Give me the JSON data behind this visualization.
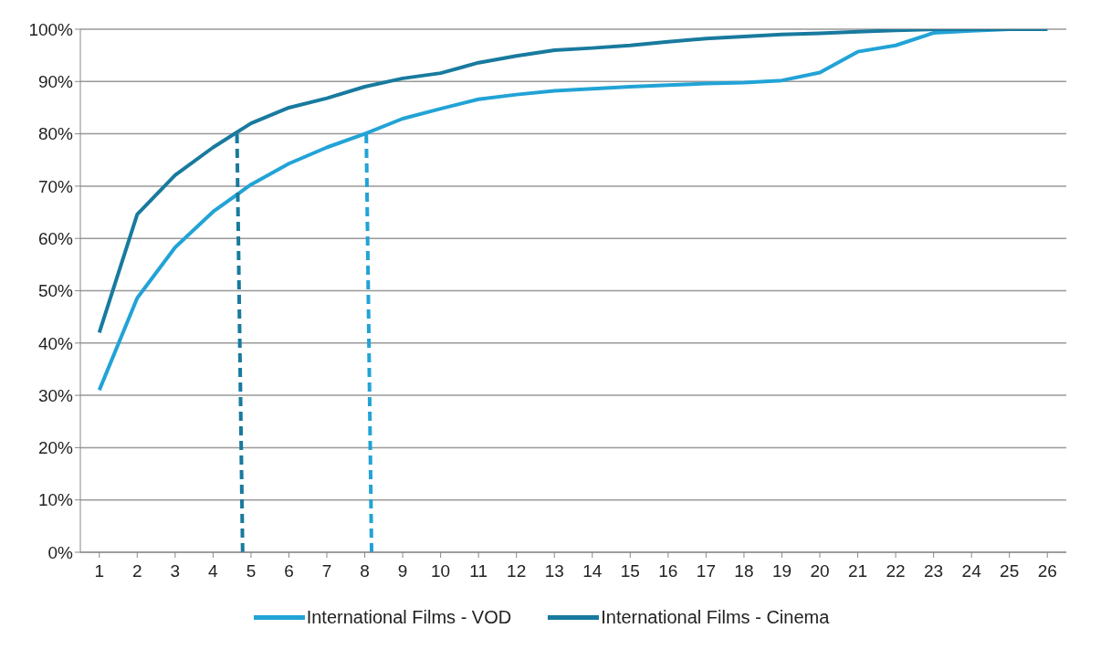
{
  "chart_data": {
    "type": "line",
    "x": [
      1,
      2,
      3,
      4,
      5,
      6,
      7,
      8,
      9,
      10,
      11,
      12,
      13,
      14,
      15,
      16,
      17,
      18,
      19,
      20,
      21,
      22,
      23,
      24,
      25,
      26
    ],
    "xlim": [
      0.5,
      26.5
    ],
    "xticks": [
      1,
      2,
      3,
      4,
      5,
      6,
      7,
      8,
      9,
      10,
      11,
      12,
      13,
      14,
      15,
      16,
      17,
      18,
      19,
      20,
      21,
      22,
      23,
      24,
      25,
      26
    ],
    "ylim": [
      0,
      100
    ],
    "yticks": [
      {
        "value": 0,
        "label": "0%"
      },
      {
        "value": 10,
        "label": "10%"
      },
      {
        "value": 20,
        "label": "20%"
      },
      {
        "value": 30,
        "label": "30%"
      },
      {
        "value": 40,
        "label": "40%"
      },
      {
        "value": 50,
        "label": "50%"
      },
      {
        "value": 60,
        "label": "60%"
      },
      {
        "value": 70,
        "label": "70%"
      },
      {
        "value": 80,
        "label": "80%"
      },
      {
        "value": 90,
        "label": "90%"
      },
      {
        "value": 100,
        "label": "100%"
      }
    ],
    "grid": "y",
    "legend": "bottom",
    "marker": "none",
    "line_style": "solid",
    "series": [
      {
        "name": "International Films - VOD",
        "color": "#22a3d6",
        "values": [
          31,
          48.6,
          58.3,
          65.1,
          70.3,
          74.3,
          77.4,
          80,
          82.9,
          84.8,
          86.6,
          87.5,
          88.2,
          88.6,
          89,
          89.3,
          89.6,
          89.8,
          90.2,
          91.7,
          95.7,
          96.9,
          99.3,
          99.7,
          100,
          100
        ]
      },
      {
        "name": "International Films - Cinema",
        "color": "#187a9e",
        "values": [
          42,
          64.6,
          72.1,
          77.4,
          82,
          85,
          86.8,
          89,
          90.6,
          91.6,
          93.6,
          94.9,
          96,
          96.4,
          96.9,
          97.6,
          98.2,
          98.6,
          99,
          99.2,
          99.5,
          99.8,
          100,
          100,
          100,
          100
        ]
      },
      {
        "type": "line",
        "color": "#22a3d6",
        "line_style": "dashed",
        "x": [
          8.18,
          8.04
        ],
        "values": [
          0,
          80
        ]
      },
      {
        "type": "line",
        "color": "#187a9e",
        "line_style": "dashed",
        "x": [
          4.78,
          4.63
        ],
        "values": [
          0,
          80
        ]
      }
    ]
  }
}
